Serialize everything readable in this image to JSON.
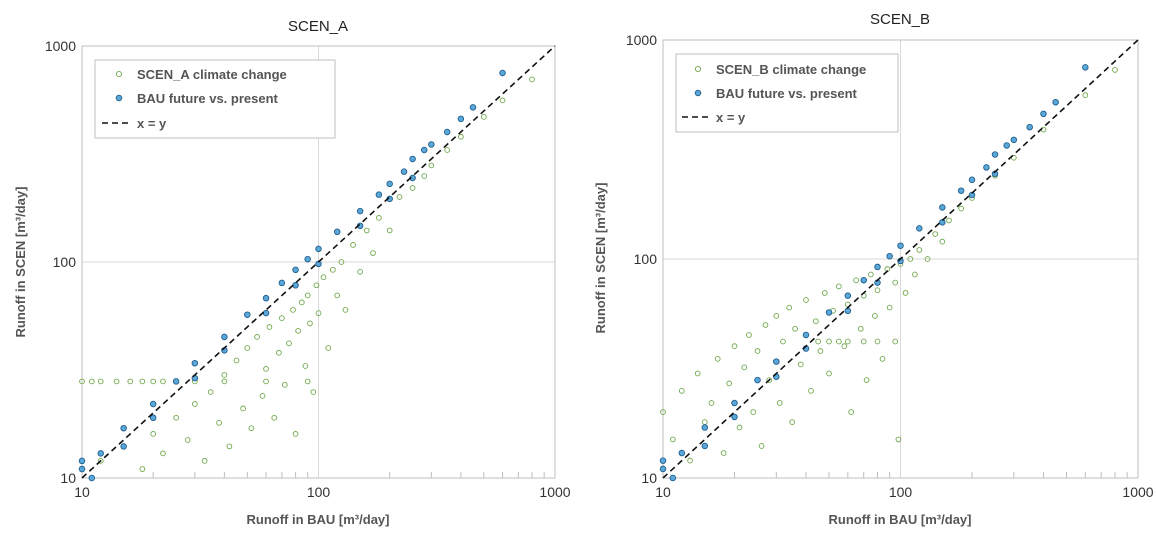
{
  "chart_data": [
    {
      "type": "scatter",
      "title": "SCEN_A",
      "xlabel": "Runoff in BAU [m³/day]",
      "ylabel": "Runoff in SCEN [m³/day]",
      "xscale": "log",
      "yscale": "log",
      "xlim": [
        10,
        1000
      ],
      "ylim": [
        10,
        1000
      ],
      "xticks": [
        "10",
        "100",
        "1000"
      ],
      "yticks": [
        "10",
        "100",
        "1000"
      ],
      "grid": true,
      "legend_position": "top-left",
      "series": [
        {
          "name": "SCEN_A climate change",
          "color": "#70a84b",
          "marker": "open-circle",
          "points": [
            [
              10,
              28
            ],
            [
              11,
              28
            ],
            [
              12,
              28
            ],
            [
              14,
              28
            ],
            [
              16,
              28
            ],
            [
              18,
              28
            ],
            [
              20,
              28
            ],
            [
              22,
              28
            ],
            [
              25,
              28
            ],
            [
              30,
              28
            ],
            [
              40,
              28
            ],
            [
              60,
              28
            ],
            [
              90,
              28
            ],
            [
              12,
              12
            ],
            [
              15,
              14
            ],
            [
              18,
              11
            ],
            [
              20,
              16
            ],
            [
              22,
              13
            ],
            [
              25,
              19
            ],
            [
              28,
              15
            ],
            [
              30,
              22
            ],
            [
              33,
              12
            ],
            [
              35,
              25
            ],
            [
              38,
              18
            ],
            [
              40,
              30
            ],
            [
              42,
              14
            ],
            [
              45,
              35
            ],
            [
              48,
              21
            ],
            [
              50,
              40
            ],
            [
              52,
              17
            ],
            [
              55,
              45
            ],
            [
              58,
              24
            ],
            [
              60,
              32
            ],
            [
              62,
              50
            ],
            [
              65,
              19
            ],
            [
              68,
              38
            ],
            [
              70,
              55
            ],
            [
              72,
              27
            ],
            [
              75,
              42
            ],
            [
              78,
              60
            ],
            [
              80,
              16
            ],
            [
              82,
              48
            ],
            [
              85,
              65
            ],
            [
              88,
              33
            ],
            [
              90,
              70
            ],
            [
              92,
              52
            ],
            [
              95,
              25
            ],
            [
              98,
              78
            ],
            [
              100,
              58
            ],
            [
              105,
              85
            ],
            [
              110,
              40
            ],
            [
              115,
              92
            ],
            [
              120,
              70
            ],
            [
              125,
              100
            ],
            [
              130,
              60
            ],
            [
              140,
              120
            ],
            [
              150,
              90
            ],
            [
              160,
              140
            ],
            [
              170,
              110
            ],
            [
              180,
              160
            ],
            [
              200,
              140
            ],
            [
              220,
              200
            ],
            [
              250,
              220
            ],
            [
              280,
              250
            ],
            [
              300,
              280
            ],
            [
              350,
              330
            ],
            [
              400,
              380
            ],
            [
              500,
              470
            ],
            [
              600,
              560
            ],
            [
              800,
              700
            ]
          ]
        },
        {
          "name": "BAU future vs. present",
          "color": "#5aa7d8",
          "marker": "filled-circle",
          "points": [
            [
              10,
              11
            ],
            [
              10,
              12
            ],
            [
              12,
              13
            ],
            [
              15,
              17
            ],
            [
              20,
              22
            ],
            [
              25,
              28
            ],
            [
              30,
              34
            ],
            [
              40,
              45
            ],
            [
              50,
              57
            ],
            [
              60,
              68
            ],
            [
              70,
              80
            ],
            [
              80,
              92
            ],
            [
              90,
              103
            ],
            [
              100,
              115
            ],
            [
              120,
              138
            ],
            [
              150,
              172
            ],
            [
              180,
              205
            ],
            [
              200,
              230
            ],
            [
              230,
              262
            ],
            [
              250,
              300
            ],
            [
              280,
              330
            ],
            [
              300,
              350
            ],
            [
              350,
              400
            ],
            [
              400,
              460
            ],
            [
              450,
              520
            ],
            [
              600,
              750
            ],
            [
              11,
              10
            ],
            [
              15,
              14
            ],
            [
              20,
              19
            ],
            [
              30,
              29
            ],
            [
              40,
              39
            ],
            [
              60,
              58
            ],
            [
              80,
              78
            ],
            [
              100,
              98
            ],
            [
              150,
              147
            ],
            [
              200,
              196
            ],
            [
              250,
              245
            ]
          ]
        },
        {
          "name": "x = y",
          "style": "dashed",
          "color": "#111111",
          "points": [
            [
              10,
              10
            ],
            [
              1000,
              1000
            ]
          ]
        }
      ]
    },
    {
      "type": "scatter",
      "title": "SCEN_B",
      "xlabel": "Runoff in BAU [m³/day]",
      "ylabel": "Runoff in SCEN [m³/day]",
      "xscale": "log",
      "yscale": "log",
      "xlim": [
        10,
        1000
      ],
      "ylim": [
        10,
        1000
      ],
      "xticks": [
        "10",
        "100",
        "1000"
      ],
      "yticks": [
        "10",
        "100",
        "1000"
      ],
      "grid": true,
      "legend_position": "top-left",
      "series": [
        {
          "name": "SCEN_B climate change",
          "color": "#70a84b",
          "marker": "open-circle",
          "points": [
            [
              45,
              42
            ],
            [
              50,
              42
            ],
            [
              55,
              42
            ],
            [
              60,
              42
            ],
            [
              70,
              42
            ],
            [
              80,
              42
            ],
            [
              95,
              42
            ],
            [
              10,
              20
            ],
            [
              11,
              15
            ],
            [
              12,
              25
            ],
            [
              13,
              12
            ],
            [
              14,
              30
            ],
            [
              15,
              18
            ],
            [
              16,
              22
            ],
            [
              17,
              35
            ],
            [
              18,
              13
            ],
            [
              19,
              27
            ],
            [
              20,
              40
            ],
            [
              21,
              17
            ],
            [
              22,
              32
            ],
            [
              23,
              45
            ],
            [
              24,
              20
            ],
            [
              25,
              38
            ],
            [
              26,
              14
            ],
            [
              27,
              50
            ],
            [
              28,
              28
            ],
            [
              30,
              55
            ],
            [
              31,
              22
            ],
            [
              32,
              42
            ],
            [
              34,
              60
            ],
            [
              35,
              18
            ],
            [
              36,
              48
            ],
            [
              38,
              33
            ],
            [
              40,
              65
            ],
            [
              42,
              25
            ],
            [
              44,
              52
            ],
            [
              46,
              38
            ],
            [
              48,
              70
            ],
            [
              50,
              30
            ],
            [
              52,
              58
            ],
            [
              55,
              75
            ],
            [
              58,
              40
            ],
            [
              60,
              62
            ],
            [
              62,
              20
            ],
            [
              65,
              80
            ],
            [
              68,
              48
            ],
            [
              70,
              68
            ],
            [
              72,
              28
            ],
            [
              75,
              85
            ],
            [
              78,
              55
            ],
            [
              80,
              72
            ],
            [
              84,
              35
            ],
            [
              88,
              90
            ],
            [
              90,
              60
            ],
            [
              95,
              78
            ],
            [
              98,
              15
            ],
            [
              100,
              95
            ],
            [
              105,
              70
            ],
            [
              110,
              100
            ],
            [
              115,
              85
            ],
            [
              120,
              110
            ],
            [
              130,
              100
            ],
            [
              140,
              130
            ],
            [
              150,
              120
            ],
            [
              160,
              150
            ],
            [
              180,
              170
            ],
            [
              200,
              190
            ],
            [
              250,
              240
            ],
            [
              300,
              290
            ],
            [
              400,
              390
            ],
            [
              600,
              560
            ],
            [
              800,
              730
            ]
          ]
        },
        {
          "name": "BAU future vs. present",
          "color": "#5aa7d8",
          "marker": "filled-circle",
          "points": [
            [
              10,
              11
            ],
            [
              10,
              12
            ],
            [
              12,
              13
            ],
            [
              15,
              17
            ],
            [
              20,
              22
            ],
            [
              25,
              28
            ],
            [
              30,
              34
            ],
            [
              40,
              45
            ],
            [
              50,
              57
            ],
            [
              60,
              68
            ],
            [
              70,
              80
            ],
            [
              80,
              92
            ],
            [
              90,
              103
            ],
            [
              100,
              115
            ],
            [
              120,
              138
            ],
            [
              150,
              172
            ],
            [
              180,
              205
            ],
            [
              200,
              230
            ],
            [
              230,
              262
            ],
            [
              250,
              300
            ],
            [
              280,
              330
            ],
            [
              300,
              350
            ],
            [
              350,
              400
            ],
            [
              400,
              460
            ],
            [
              450,
              520
            ],
            [
              600,
              750
            ],
            [
              11,
              10
            ],
            [
              15,
              14
            ],
            [
              20,
              19
            ],
            [
              30,
              29
            ],
            [
              40,
              39
            ],
            [
              60,
              58
            ],
            [
              80,
              78
            ],
            [
              100,
              98
            ],
            [
              150,
              147
            ],
            [
              200,
              196
            ],
            [
              250,
              245
            ]
          ]
        },
        {
          "name": "x = y",
          "style": "dashed",
          "color": "#111111",
          "points": [
            [
              10,
              10
            ],
            [
              1000,
              1000
            ]
          ]
        }
      ]
    }
  ]
}
